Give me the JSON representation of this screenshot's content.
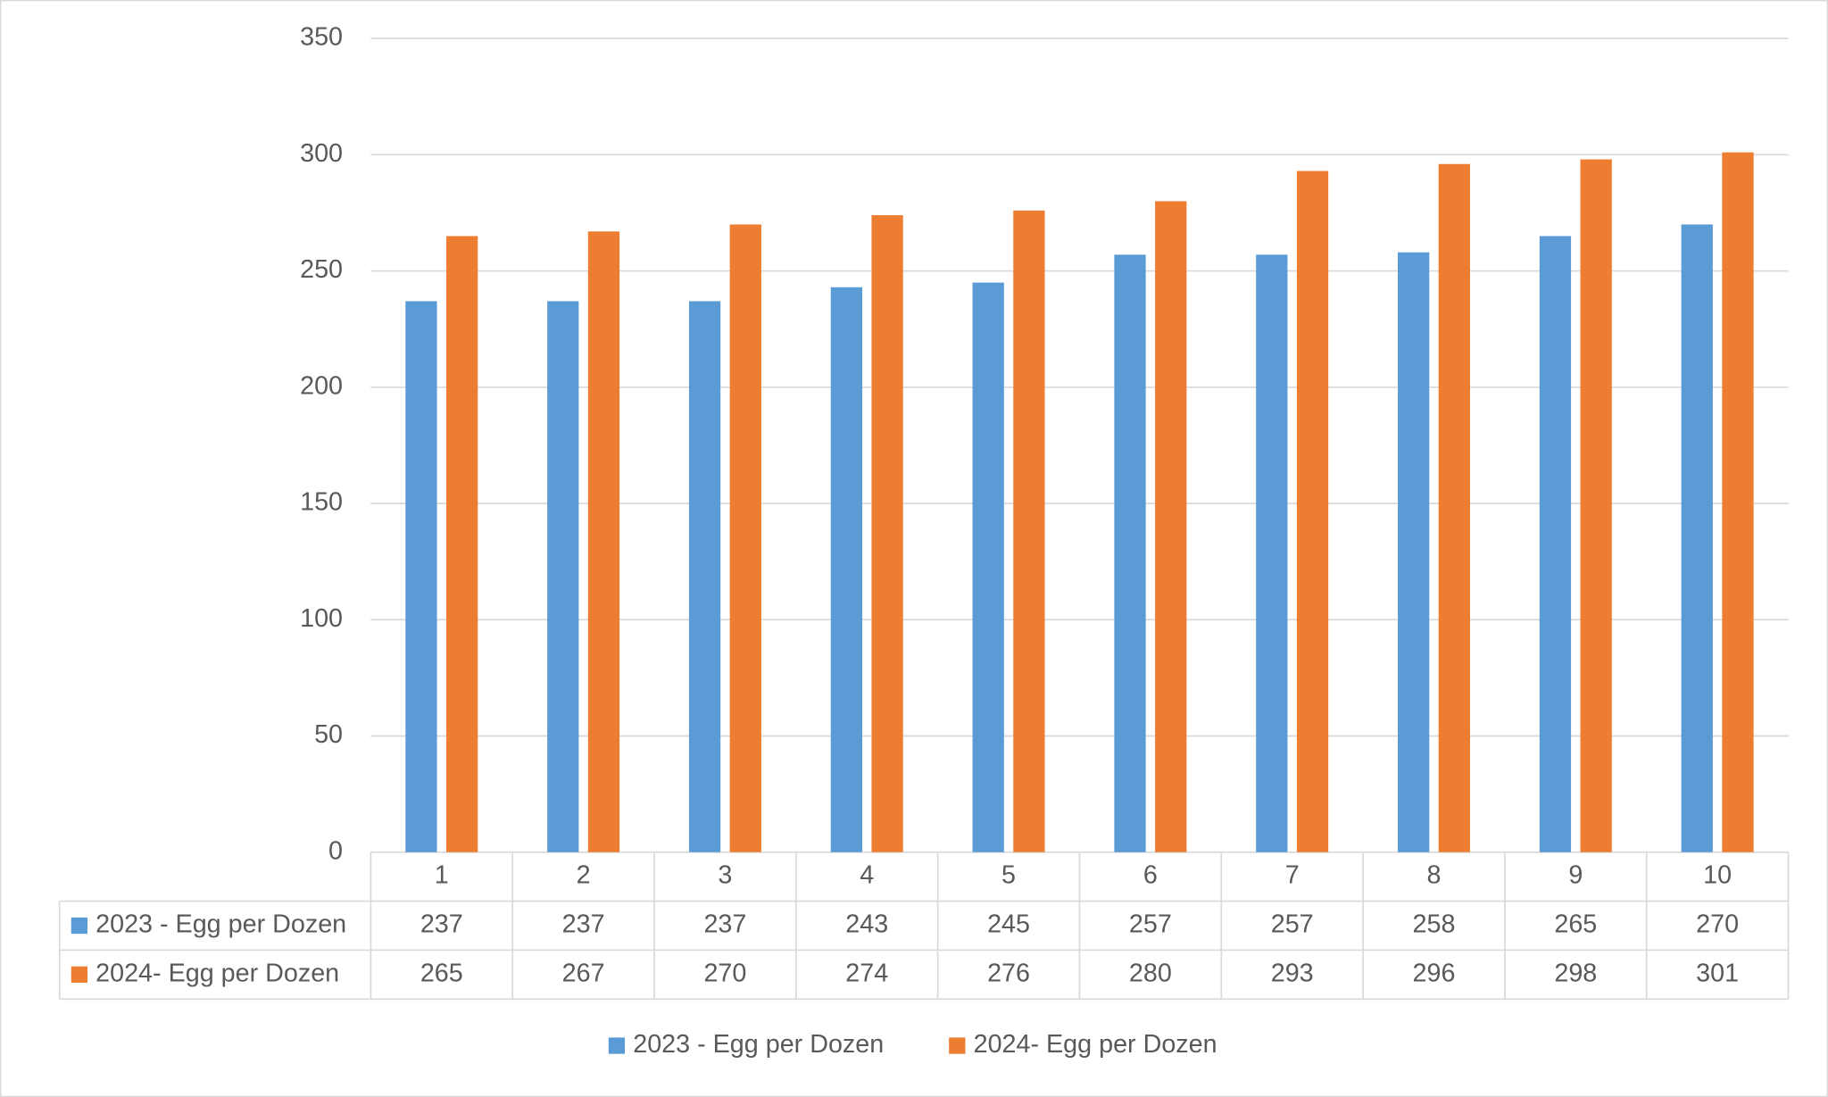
{
  "chart_data": {
    "type": "bar",
    "categories": [
      "1",
      "2",
      "3",
      "4",
      "5",
      "6",
      "7",
      "8",
      "9",
      "10"
    ],
    "series": [
      {
        "name": "2023 - Egg per Dozen",
        "color": "#5b9bd5",
        "values": [
          237,
          237,
          237,
          243,
          245,
          257,
          257,
          258,
          265,
          270
        ]
      },
      {
        "name": "2024- Egg per Dozen",
        "color": "#ed7d31",
        "values": [
          265,
          267,
          270,
          274,
          276,
          280,
          293,
          296,
          298,
          301
        ]
      }
    ],
    "ylim": [
      0,
      350
    ],
    "yticks": [
      0,
      50,
      100,
      150,
      200,
      250,
      300,
      350
    ],
    "grid": true,
    "data_table": true,
    "legend": "bottom"
  }
}
